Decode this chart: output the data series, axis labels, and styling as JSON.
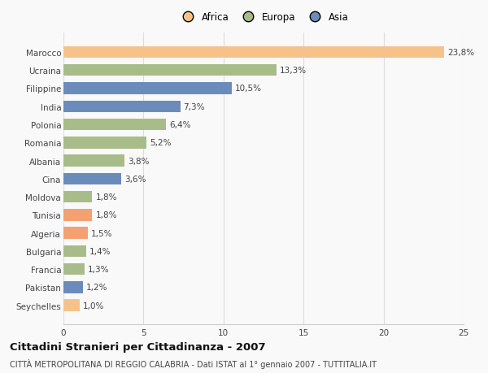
{
  "categories": [
    "Seychelles",
    "Pakistan",
    "Francia",
    "Bulgaria",
    "Algeria",
    "Tunisia",
    "Moldova",
    "Cina",
    "Albania",
    "Romania",
    "Polonia",
    "India",
    "Filippine",
    "Ucraina",
    "Marocco"
  ],
  "values": [
    1.0,
    1.2,
    1.3,
    1.4,
    1.5,
    1.8,
    1.8,
    3.6,
    3.8,
    5.2,
    6.4,
    7.3,
    10.5,
    13.3,
    23.8
  ],
  "labels": [
    "1,0%",
    "1,2%",
    "1,3%",
    "1,4%",
    "1,5%",
    "1,8%",
    "1,8%",
    "3,6%",
    "3,8%",
    "5,2%",
    "6,4%",
    "7,3%",
    "10,5%",
    "13,3%",
    "23,8%"
  ],
  "colors": [
    "#f5c38a",
    "#6b8cba",
    "#a8bc8a",
    "#a8bc8a",
    "#f5a070",
    "#f5a070",
    "#a8bc8a",
    "#6b8cba",
    "#a8bc8a",
    "#a8bc8a",
    "#a8bc8a",
    "#6b8cba",
    "#6b8cba",
    "#a8bc8a",
    "#f5c38a"
  ],
  "legend": [
    {
      "label": "Africa",
      "color": "#f5c38a"
    },
    {
      "label": "Europa",
      "color": "#a8bc8a"
    },
    {
      "label": "Asia",
      "color": "#6b8cba"
    }
  ],
  "xlim": [
    0,
    25
  ],
  "xticks": [
    0,
    5,
    10,
    15,
    20,
    25
  ],
  "title": "Cittadini Stranieri per Cittadinanza - 2007",
  "subtitle": "CITTÀ METROPOLITANA DI REGGIO CALABRIA - Dati ISTAT al 1° gennaio 2007 - TUTTITALIA.IT",
  "background_color": "#f9f9f9",
  "bar_height": 0.65,
  "label_fontsize": 7.5,
  "tick_fontsize": 7.5,
  "title_fontsize": 9.5,
  "subtitle_fontsize": 7.0,
  "legend_fontsize": 8.5
}
